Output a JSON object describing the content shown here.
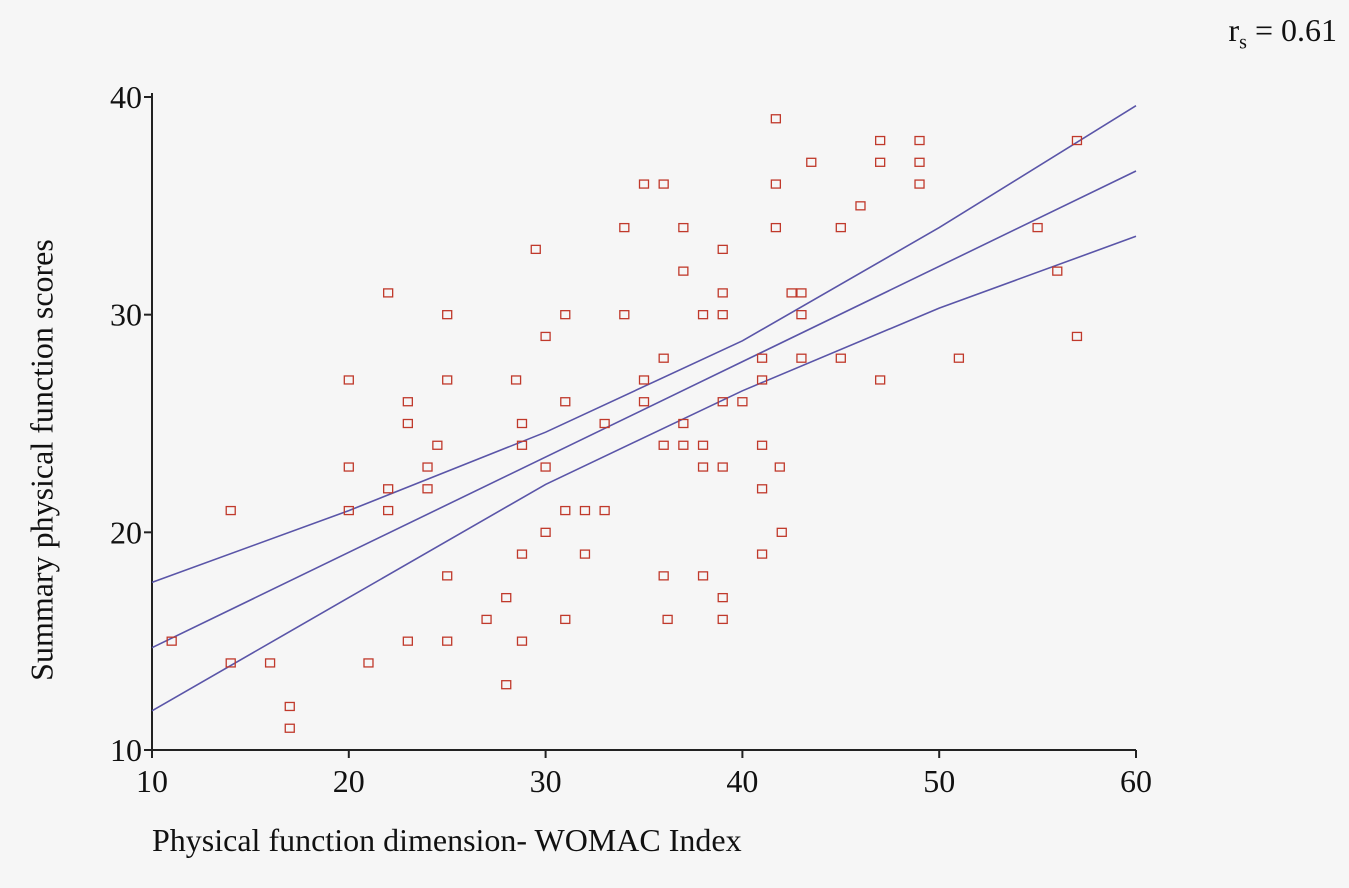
{
  "stat_label": {
    "r": "r",
    "sub": "s",
    "value": " = 0.61"
  },
  "chart_data": {
    "type": "scatter",
    "title": "",
    "xlabel": "Physical function dimension- WOMAC Index",
    "ylabel": "Summary physical function scores",
    "xlim": [
      10,
      60
    ],
    "ylim": [
      10,
      40
    ],
    "xticks": [
      10,
      20,
      30,
      40,
      50,
      60
    ],
    "yticks": [
      10,
      20,
      30,
      40
    ],
    "marker_color": "#c0392b",
    "line_color": "#5a55a8",
    "grid": false,
    "points": [
      [
        11,
        15
      ],
      [
        14,
        21
      ],
      [
        14,
        14
      ],
      [
        16,
        14
      ],
      [
        17,
        12
      ],
      [
        17,
        11
      ],
      [
        20,
        27
      ],
      [
        20,
        23
      ],
      [
        20,
        21
      ],
      [
        21,
        14
      ],
      [
        22,
        31
      ],
      [
        22,
        22
      ],
      [
        22,
        21
      ],
      [
        23,
        26
      ],
      [
        23,
        25
      ],
      [
        23,
        15
      ],
      [
        24,
        23
      ],
      [
        24,
        22
      ],
      [
        24.5,
        24
      ],
      [
        25,
        30
      ],
      [
        25,
        27
      ],
      [
        25,
        18
      ],
      [
        25,
        15
      ],
      [
        27,
        16
      ],
      [
        28,
        17
      ],
      [
        28,
        13
      ],
      [
        28.5,
        27
      ],
      [
        28.8,
        25
      ],
      [
        28.8,
        24
      ],
      [
        28.8,
        19
      ],
      [
        28.8,
        15
      ],
      [
        29.5,
        33
      ],
      [
        30,
        29
      ],
      [
        30,
        23
      ],
      [
        30,
        20
      ],
      [
        31,
        30
      ],
      [
        31,
        26
      ],
      [
        31,
        21
      ],
      [
        31,
        16
      ],
      [
        32,
        21
      ],
      [
        32,
        19
      ],
      [
        33,
        25
      ],
      [
        33,
        21
      ],
      [
        34,
        34
      ],
      [
        34,
        30
      ],
      [
        35,
        36
      ],
      [
        35,
        27
      ],
      [
        35,
        26
      ],
      [
        36,
        36
      ],
      [
        36,
        28
      ],
      [
        36,
        24
      ],
      [
        36,
        18
      ],
      [
        36.2,
        16
      ],
      [
        37,
        34
      ],
      [
        37,
        32
      ],
      [
        37,
        25
      ],
      [
        37,
        24
      ],
      [
        38,
        30
      ],
      [
        38,
        24
      ],
      [
        38,
        23
      ],
      [
        38,
        18
      ],
      [
        39,
        33
      ],
      [
        39,
        31
      ],
      [
        39,
        30
      ],
      [
        39,
        26
      ],
      [
        39,
        23
      ],
      [
        39,
        17
      ],
      [
        39,
        16
      ],
      [
        40,
        26
      ],
      [
        41,
        28
      ],
      [
        41,
        27
      ],
      [
        41,
        24
      ],
      [
        41,
        22
      ],
      [
        41,
        19
      ],
      [
        41.7,
        39
      ],
      [
        41.7,
        36
      ],
      [
        41.7,
        34
      ],
      [
        41.9,
        23
      ],
      [
        42,
        20
      ],
      [
        42.5,
        31
      ],
      [
        43,
        31
      ],
      [
        43,
        30
      ],
      [
        43,
        28
      ],
      [
        43.5,
        37
      ],
      [
        45,
        34
      ],
      [
        45,
        28
      ],
      [
        46,
        35
      ],
      [
        47,
        38
      ],
      [
        47,
        37
      ],
      [
        47,
        27
      ],
      [
        49,
        38
      ],
      [
        49,
        37
      ],
      [
        49,
        36
      ],
      [
        51,
        28
      ],
      [
        55,
        34
      ],
      [
        56,
        32
      ],
      [
        57,
        38
      ],
      [
        57,
        29
      ]
    ],
    "lines": [
      {
        "name": "",
        "x": [
          10,
          20,
          30,
          40,
          50,
          60
        ],
        "y": [
          17.7,
          21.0,
          24.6,
          28.8,
          34.0,
          39.6
        ]
      },
      {
        "name": "",
        "x": [
          10,
          60
        ],
        "y": [
          14.7,
          36.6
        ]
      },
      {
        "name": "",
        "x": [
          10,
          20,
          30,
          40,
          50,
          60
        ],
        "y": [
          11.8,
          17.0,
          22.2,
          26.5,
          30.3,
          33.6
        ]
      }
    ]
  }
}
